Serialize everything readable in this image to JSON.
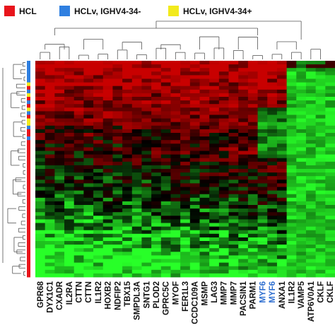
{
  "legend": [
    {
      "label": "HCL",
      "color": "#e8141b"
    },
    {
      "label": "HCLv, IGHV4-34-",
      "color": "#2f7fe0"
    },
    {
      "label": "HCLv, IGHV4-34+",
      "color": "#f2ea1c"
    }
  ],
  "chart_data": {
    "type": "heatmap",
    "title": "",
    "xlabel": "",
    "ylabel": "",
    "genes": [
      {
        "name": "GPR68",
        "color": "#111111"
      },
      {
        "name": "DYX1C1",
        "color": "#111111"
      },
      {
        "name": "CXADR",
        "color": "#111111"
      },
      {
        "name": "IL2RA",
        "color": "#111111"
      },
      {
        "name": "CTTN",
        "color": "#111111"
      },
      {
        "name": "CTTN",
        "color": "#111111"
      },
      {
        "name": "IL1R2",
        "color": "#111111"
      },
      {
        "name": "HOXB2",
        "color": "#111111"
      },
      {
        "name": "NDFIP2",
        "color": "#111111"
      },
      {
        "name": "TBX15",
        "color": "#111111"
      },
      {
        "name": "SMPDL3A",
        "color": "#111111"
      },
      {
        "name": "SNTG1",
        "color": "#111111"
      },
      {
        "name": "PLOD2",
        "color": "#111111"
      },
      {
        "name": "GPRC5C",
        "color": "#111111"
      },
      {
        "name": "MYOF",
        "color": "#111111"
      },
      {
        "name": "FER1L3",
        "color": "#111111"
      },
      {
        "name": "CCDC109A",
        "color": "#111111"
      },
      {
        "name": "MSMP",
        "color": "#111111"
      },
      {
        "name": "LAG3",
        "color": "#111111"
      },
      {
        "name": "MMP7",
        "color": "#111111"
      },
      {
        "name": "MMP7",
        "color": "#111111"
      },
      {
        "name": "PACSIN1",
        "color": "#111111"
      },
      {
        "name": "PARM1",
        "color": "#111111"
      },
      {
        "name": "MYF6",
        "color": "#2f6fd0"
      },
      {
        "name": "MYF6",
        "color": "#2f6fd0"
      },
      {
        "name": "ANXA1",
        "color": "#111111"
      },
      {
        "name": "IL1R2",
        "color": "#111111"
      },
      {
        "name": "VAMP5",
        "color": "#111111"
      },
      {
        "name": "ATP6V0A1",
        "color": "#111111"
      },
      {
        "name": "CKLF",
        "color": "#111111"
      },
      {
        "name": "CKLF",
        "color": "#111111"
      }
    ],
    "row_groups": [
      "HCLv, IGHV4-34-",
      "HCLv, IGHV4-34-",
      "HCLv, IGHV4-34-",
      "HCLv, IGHV4-34-",
      "HCLv, IGHV4-34-",
      "HCLv, IGHV4-34-",
      "HCLv, IGHV4-34+",
      "HCL",
      "HCLv, IGHV4-34-",
      "HCLv, IGHV4-34+",
      "HCL",
      "HCLv, IGHV4-34-",
      "HCL",
      "HCLv, IGHV4-34+",
      "HCLv, IGHV4-34-",
      "HCL",
      "HCLv, IGHV4-34+",
      "HCLv, IGHV4-34+",
      "HCLv, IGHV4-34-",
      "HCL",
      "HCL",
      "HCLv, IGHV4-34-",
      "HCL",
      "HCL",
      "HCL",
      "HCL",
      "HCL",
      "HCL",
      "HCL",
      "HCL",
      "HCL",
      "HCL",
      "HCL",
      "HCL",
      "HCL",
      "HCL",
      "HCL",
      "HCL",
      "HCL",
      "HCL",
      "HCL",
      "HCL",
      "HCL",
      "HCL",
      "HCL",
      "HCL",
      "HCL",
      "HCL",
      "HCL",
      "HCL",
      "HCL",
      "HCL",
      "HCL",
      "HCL",
      "HCL",
      "HCL",
      "HCL",
      "HCL",
      "HCL",
      "HCL"
    ],
    "color_scale": {
      "high": "#c80000",
      "mid": "#000000",
      "low": "#22ff22"
    },
    "n_rows": 60,
    "pattern": {
      "seed": 7
    }
  }
}
